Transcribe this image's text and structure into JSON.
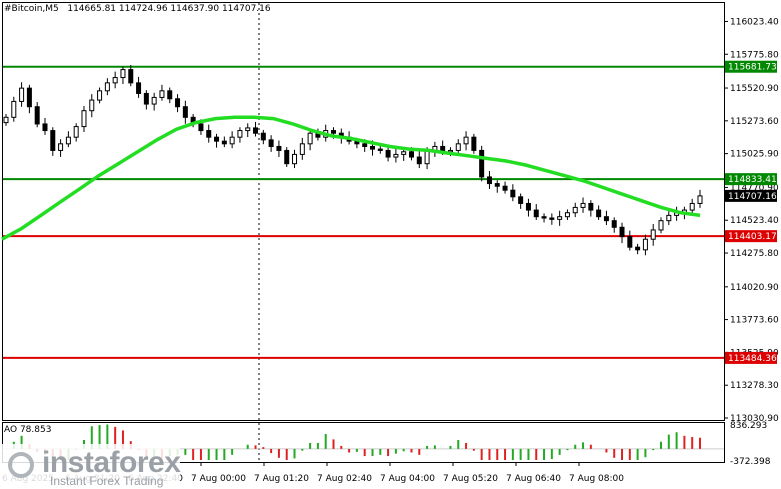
{
  "header": {
    "symbol": "#Bitcoin,M5",
    "ohlc": "114665.81 114724.96 114637.90 114707.16"
  },
  "indicator": {
    "label": "AO 78.853"
  },
  "logo": {
    "brand": "instaforex",
    "tagline": "Instant Forex Trading"
  },
  "colors": {
    "bull": "#000000",
    "ma": "#22dd22",
    "support": "#dd0000",
    "resistance": "#008800",
    "ao_up": "#22aa22",
    "ao_down": "#dd2222"
  },
  "chart_data": {
    "type": "candlestick",
    "y_range": [
      113030.9,
      116140
    ],
    "price_ticks": [
      "116023.40",
      "115775.80",
      "115520.90",
      "115273.60",
      "115025.90",
      "114770.90",
      "114523.40",
      "114275.80",
      "114020.90",
      "113773.60",
      "113525.90",
      "113278.30",
      "113030.90"
    ],
    "time_labels": [
      "6 Aug 2025",
      "6 Aug 21:20",
      "6 Aug 22:40",
      "7 Aug 00:00",
      "7 Aug 01:20",
      "7 Aug 02:40",
      "7 Aug 04:00",
      "7 Aug 05:20",
      "7 Aug 06:40",
      "7 Aug 08:00"
    ],
    "levels": [
      {
        "label": "115681.73",
        "price": 115681.73,
        "kind": "resistance"
      },
      {
        "label": "114833.41",
        "price": 114833.41,
        "kind": "resistance"
      },
      {
        "label": "114707.16",
        "price": 114707.16,
        "kind": "current"
      },
      {
        "label": "114403.17",
        "price": 114403.17,
        "kind": "support"
      },
      {
        "label": "113484.36",
        "price": 113484.36,
        "kind": "support"
      }
    ],
    "ao_ticks": [
      "836.293",
      "-372.398"
    ],
    "ao_range": [
      -372.398,
      836.293
    ],
    "closes": [
      115300,
      115420,
      115520,
      115380,
      115250,
      115200,
      115050,
      115100,
      115150,
      115230,
      115350,
      115430,
      115500,
      115560,
      115600,
      115660,
      115560,
      115480,
      115400,
      115450,
      115500,
      115440,
      115380,
      115300,
      115250,
      115200,
      115150,
      115120,
      115100,
      115150,
      115200,
      115220,
      115180,
      115130,
      115080,
      115050,
      114950,
      115020,
      115100,
      115180,
      115150,
      115200,
      115180,
      115150,
      115120,
      115100,
      115080,
      115060,
      115050,
      115000,
      115020,
      115040,
      115000,
      114950,
      115050,
      115080,
      115040,
      115050,
      115100,
      115150,
      115050,
      114850,
      114800,
      114780,
      114750,
      114700,
      114650,
      114600,
      114550,
      114540,
      114530,
      114550,
      114580,
      114620,
      114650,
      114600,
      114550,
      114520,
      114470,
      114400,
      114320,
      114300,
      114380,
      114450,
      114520,
      114560,
      114580,
      114600,
      114650,
      114707
    ],
    "ma": [
      114380,
      114460,
      114560,
      114660,
      114760,
      114860,
      114950,
      115040,
      115130,
      115210,
      115260,
      115290,
      115300,
      115300,
      115290,
      115250,
      115200,
      115160,
      115140,
      115110,
      115080,
      115060,
      115050,
      115030,
      115010,
      114990,
      114970,
      114940,
      114900,
      114860,
      114820,
      114770,
      114720,
      114670,
      114620,
      114580,
      114560
    ]
  }
}
